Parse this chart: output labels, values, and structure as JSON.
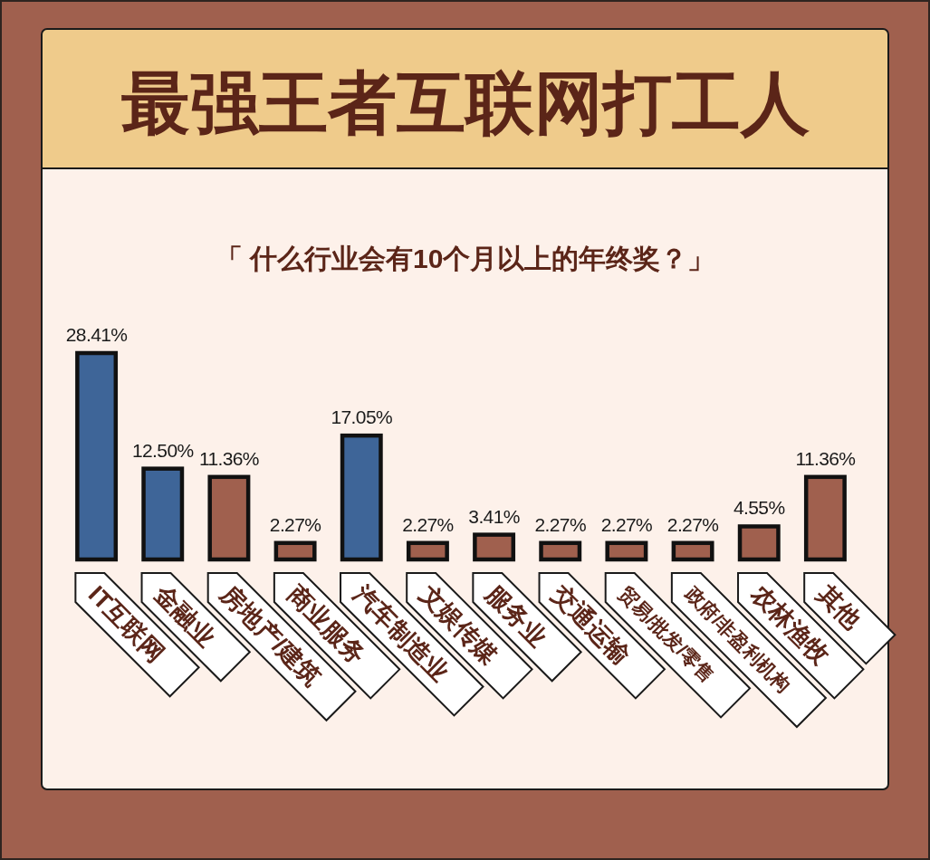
{
  "chart_data": {
    "type": "bar",
    "title": "最强王者互联网打工人",
    "subtitle": "「 什么行业会有10个月以上的年终奖？」",
    "categories": [
      "IT互联网",
      "金融业",
      "房地产/建筑",
      "商业服务",
      "汽车制造业",
      "文娱传媒",
      "服务业",
      "交通运输",
      "贸易/批发/零售",
      "政府/非盈利机构",
      "农林渔牧",
      "其他"
    ],
    "values": [
      28.41,
      12.5,
      11.36,
      2.27,
      17.05,
      2.27,
      3.41,
      2.27,
      2.27,
      2.27,
      4.55,
      11.36
    ],
    "colors": [
      "#3e6598",
      "#3e6598",
      "#a0604e",
      "#a0604e",
      "#3e6598",
      "#a0604e",
      "#a0604e",
      "#a0604e",
      "#a0604e",
      "#a0604e",
      "#a0604e",
      "#a0604e"
    ],
    "value_labels": [
      "28.41%",
      "12.50%",
      "11.36%",
      "2.27%",
      "17.05%",
      "2.27%",
      "3.41%",
      "2.27%",
      "2.27%",
      "2.27%",
      "4.55%",
      "11.36%"
    ],
    "tick_labels": "x"
  }
}
